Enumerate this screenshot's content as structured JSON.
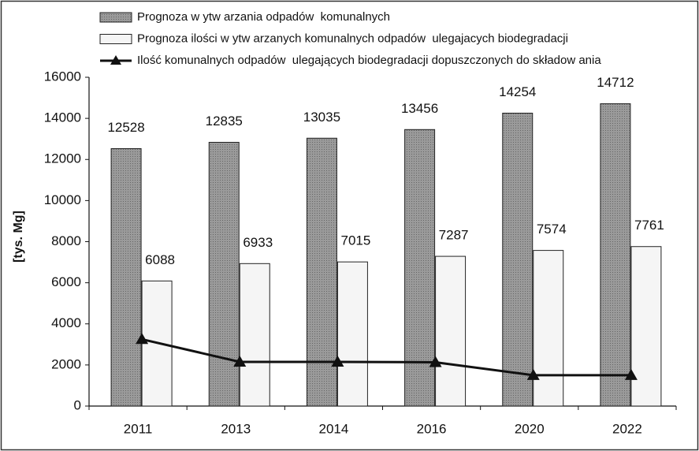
{
  "chart_data": {
    "type": "bar",
    "y_label": "[tys. Mg]",
    "categories": [
      "2011",
      "2013",
      "2014",
      "2016",
      "2020",
      "2022"
    ],
    "series": [
      {
        "name": "Prognoza w ytw arzania odpadów  komunalnych",
        "color": "#9a9a9a",
        "values": [
          12528,
          12835,
          13035,
          13456,
          14254,
          14712
        ]
      },
      {
        "name": "Prognoza ilości w ytw arzanych komunalnych odpadów  ulegajacych biodegradacji",
        "color": "#f5f5f5",
        "values": [
          6088,
          6933,
          7015,
          7287,
          7574,
          7761
        ]
      },
      {
        "name": "Ilość komunalnych odpadów  ulegających biodegradacji dopuszczonych do składow ania",
        "color": "#111111",
        "type": "line",
        "values": [
          3250,
          2150,
          2150,
          2130,
          1500,
          1500
        ]
      }
    ],
    "ylim": [
      0,
      16000
    ],
    "yticks": [
      0,
      2000,
      4000,
      6000,
      8000,
      10000,
      12000,
      14000,
      16000
    ],
    "grid": false
  }
}
